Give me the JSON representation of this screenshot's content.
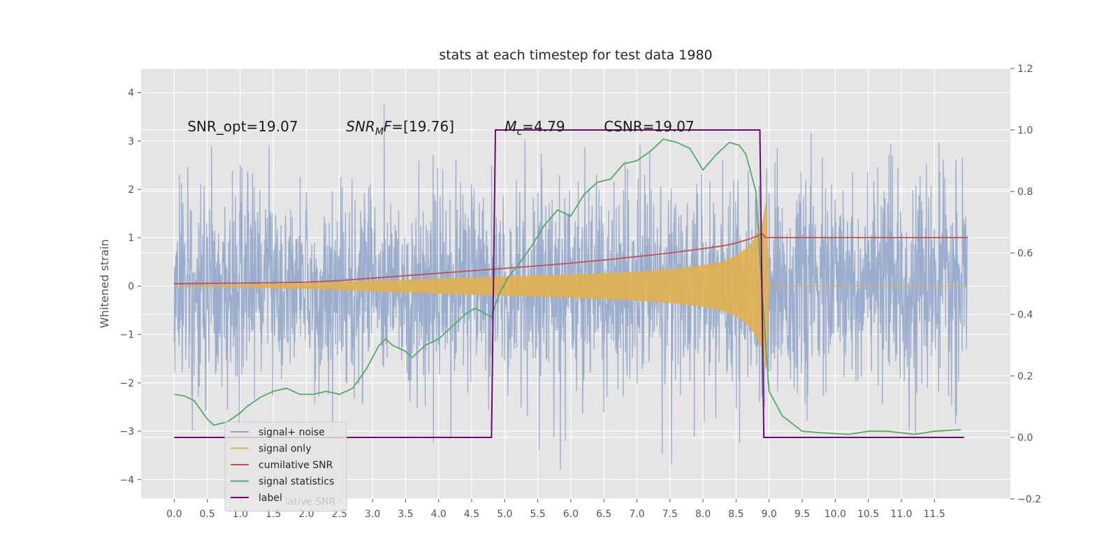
{
  "chart_data": {
    "type": "line",
    "title": "stats at each timestep for test data 1980",
    "xlabel": "",
    "ylabel": "Whitened strain",
    "xlim": [
      -0.5,
      12.65
    ],
    "ylim": [
      -4.4,
      4.5
    ],
    "y2lim": [
      -0.2,
      1.2
    ],
    "x_ticks": [
      0.0,
      0.5,
      1.0,
      1.5,
      2.0,
      2.5,
      3.0,
      3.5,
      4.0,
      4.5,
      5.0,
      5.5,
      6.0,
      6.5,
      7.0,
      7.5,
      8.0,
      8.5,
      9.0,
      9.5,
      10.0,
      10.5,
      11.0,
      11.5
    ],
    "x_tick_labels": [
      "0.0",
      "0.5",
      "1.0",
      "1.5",
      "2.0",
      "2.5",
      "3.0",
      "3.5",
      "4.0",
      "4.5",
      "5.0",
      "5.5",
      "6.0",
      "6.5",
      "7.0",
      "7.5",
      "8.0",
      "8.5",
      "9.0",
      "9.5",
      "10.0",
      "10.5",
      "11.0",
      "11.5"
    ],
    "y_ticks": [
      -4,
      -3,
      -2,
      -1,
      0,
      1,
      2,
      3,
      4
    ],
    "y_tick_labels": [
      "−4",
      "−3",
      "−2",
      "−1",
      "0",
      "1",
      "2",
      "3",
      "4"
    ],
    "y2_ticks": [
      -0.2,
      0.0,
      0.2,
      0.4,
      0.6,
      0.8,
      1.0,
      1.2
    ],
    "y2_tick_labels": [
      "−0.2",
      "0.0",
      "0.2",
      "0.4",
      "0.6",
      "0.8",
      "1.0",
      "1.2"
    ],
    "grid": true,
    "legend_position": "lower-left",
    "annotations": [
      {
        "text": "SNR_opt=19.07",
        "x": 0.2
      },
      {
        "text": "SNR",
        "sub": "M",
        "rest": "F=[19.76]",
        "italic": true,
        "x": 2.6
      },
      {
        "text": "M",
        "sub": "c",
        "rest": "=4.79",
        "italic": true,
        "x": 5.0
      },
      {
        "text": "CSNR=19.07",
        "x": 6.5
      }
    ],
    "annotation_y": 3.2,
    "series": [
      {
        "name": "signal+ noise",
        "color": "#8ea3c9",
        "axis": "left",
        "description": "noisy whitened strain, amplitude roughly between -3.5 and 3.6 over x = 0 to 12",
        "x_range": [
          0.0,
          12.0
        ],
        "typical_band": [
          -2.5,
          2.5
        ],
        "extremes": [
          -4.0,
          4.1
        ]
      },
      {
        "name": "signal only",
        "color": "#e0b050",
        "axis": "left",
        "envelope_x": [
          0.0,
          1.0,
          2.0,
          3.0,
          4.0,
          5.0,
          5.5,
          6.0,
          6.5,
          7.0,
          7.5,
          8.0,
          8.3,
          8.5,
          8.7,
          8.8,
          8.9,
          8.95,
          9.0,
          12.0
        ],
        "envelope_amp": [
          0.0,
          0.02,
          0.05,
          0.1,
          0.15,
          0.19,
          0.21,
          0.23,
          0.26,
          0.29,
          0.34,
          0.42,
          0.5,
          0.62,
          0.82,
          1.02,
          1.3,
          1.7,
          0.0,
          0.0
        ]
      },
      {
        "name": "cumilative SNR",
        "color": "#c44e52",
        "axis": "right",
        "x": [
          0.0,
          1.0,
          2.0,
          2.5,
          3.0,
          3.5,
          4.0,
          4.5,
          5.0,
          5.5,
          6.0,
          6.5,
          7.0,
          7.5,
          8.0,
          8.3,
          8.5,
          8.7,
          8.9,
          8.95,
          12.0
        ],
        "y": [
          0.5,
          0.502,
          0.505,
          0.51,
          0.518,
          0.526,
          0.534,
          0.542,
          0.55,
          0.558,
          0.567,
          0.577,
          0.588,
          0.6,
          0.614,
          0.623,
          0.632,
          0.645,
          0.662,
          0.65,
          0.65
        ]
      },
      {
        "name": "signal statistics",
        "color": "#55a868",
        "axis": "right",
        "x": [
          0.0,
          0.15,
          0.3,
          0.5,
          0.6,
          0.8,
          1.0,
          1.1,
          1.3,
          1.5,
          1.7,
          1.9,
          2.1,
          2.3,
          2.5,
          2.7,
          2.9,
          3.1,
          3.2,
          3.3,
          3.5,
          3.6,
          3.8,
          4.0,
          4.2,
          4.4,
          4.55,
          4.65,
          4.8,
          4.9,
          5.05,
          5.2,
          5.4,
          5.6,
          5.8,
          6.0,
          6.2,
          6.4,
          6.6,
          6.8,
          7.0,
          7.2,
          7.4,
          7.6,
          7.8,
          8.0,
          8.2,
          8.4,
          8.55,
          8.65,
          8.8,
          8.9,
          9.0,
          9.2,
          9.5,
          9.8,
          10.2,
          10.5,
          10.8,
          11.2,
          11.5,
          11.9
        ],
        "y": [
          0.14,
          0.135,
          0.12,
          0.06,
          0.04,
          0.05,
          0.08,
          0.1,
          0.13,
          0.15,
          0.16,
          0.14,
          0.14,
          0.15,
          0.14,
          0.16,
          0.22,
          0.3,
          0.32,
          0.3,
          0.28,
          0.26,
          0.3,
          0.32,
          0.36,
          0.4,
          0.42,
          0.41,
          0.39,
          0.46,
          0.52,
          0.56,
          0.62,
          0.69,
          0.74,
          0.72,
          0.79,
          0.83,
          0.84,
          0.89,
          0.9,
          0.93,
          0.97,
          0.96,
          0.94,
          0.87,
          0.92,
          0.96,
          0.95,
          0.92,
          0.8,
          0.45,
          0.15,
          0.07,
          0.02,
          0.015,
          0.01,
          0.02,
          0.02,
          0.01,
          0.02,
          0.025
        ]
      },
      {
        "name": "label",
        "color": "#6a0a6f",
        "axis": "right",
        "x": [
          0.0,
          4.8,
          4.86,
          8.86,
          8.92,
          11.95
        ],
        "y": [
          0.0,
          0.0,
          1.0,
          1.0,
          0.0,
          0.0
        ]
      }
    ],
    "legend": [
      "signal+ noise",
      "signal only",
      "cumilative SNR",
      "signal statistics",
      "label"
    ],
    "legend_ghost_text": "lative SNR"
  }
}
